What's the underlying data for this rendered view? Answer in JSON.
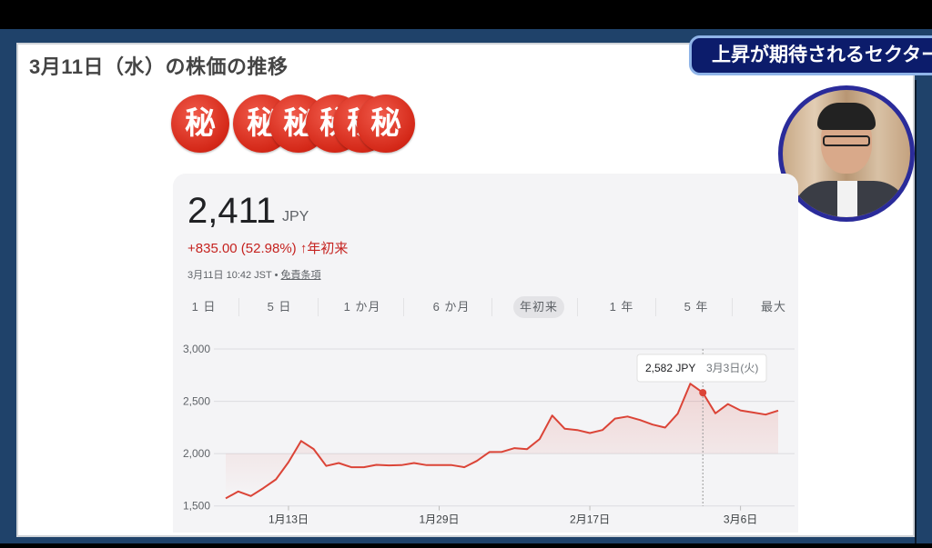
{
  "slide": {
    "title": "3月11日（水）の株価の推移",
    "seal_char": "秘",
    "seal_count": 6,
    "badge": "上昇が期待されるセクター"
  },
  "quote": {
    "price": "2,411",
    "currency": "JPY",
    "change": "+835.00 (52.98%)",
    "change_arrow": "↑",
    "change_period": "年初来",
    "timestamp": "3月11日 10:42 JST",
    "separator": "•",
    "disclaimer_link": "免責条項",
    "accent_color": "#d93025"
  },
  "tabs": [
    {
      "label": "1 日"
    },
    {
      "label": "5 日"
    },
    {
      "label": "1 か月"
    },
    {
      "label": "6 か月"
    },
    {
      "label": "年初来",
      "active": true
    },
    {
      "label": "1 年"
    },
    {
      "label": "5 年"
    },
    {
      "label": "最大"
    }
  ],
  "chart_data": {
    "type": "area",
    "ylim": [
      1500,
      3000
    ],
    "yticks": [
      "3,000",
      "2,500",
      "2,000",
      "1,500"
    ],
    "ytick_values": [
      3000,
      2500,
      2000,
      1500
    ],
    "xticks": [
      {
        "label": "1月13日",
        "date": "1/13"
      },
      {
        "label": "1月29日",
        "date": "1/29"
      },
      {
        "label": "2月17日",
        "date": "2/17"
      },
      {
        "label": "3月6日",
        "date": "3/6"
      }
    ],
    "grid": true,
    "line_color": "#db4437",
    "x": [
      "1/5",
      "1/6",
      "1/7",
      "1/8",
      "1/9",
      "1/13",
      "1/14",
      "1/15",
      "1/16",
      "1/19",
      "1/20",
      "1/21",
      "1/22",
      "1/23",
      "1/26",
      "1/27",
      "1/28",
      "1/29",
      "1/30",
      "2/2",
      "2/3",
      "2/4",
      "2/5",
      "2/6",
      "2/9",
      "2/10",
      "2/12",
      "2/13",
      "2/16",
      "2/17",
      "2/18",
      "2/19",
      "2/20",
      "2/24",
      "2/25",
      "2/26",
      "2/27",
      "3/2",
      "3/3",
      "3/4",
      "3/5",
      "3/6",
      "3/9",
      "3/10",
      "3/11"
    ],
    "values": [
      1572,
      1638,
      1595,
      1670,
      1754,
      1919,
      2121,
      2044,
      1882,
      1910,
      1870,
      1870,
      1893,
      1887,
      1890,
      1910,
      1890,
      1890,
      1890,
      1870,
      1930,
      2015,
      2017,
      2052,
      2043,
      2139,
      2364,
      2237,
      2225,
      2197,
      2225,
      2335,
      2355,
      2321,
      2277,
      2249,
      2382,
      2668,
      2582,
      2385,
      2474,
      2413,
      2393,
      2373,
      2411
    ],
    "tooltip": {
      "date": "3/3",
      "value_label": "2,582 JPY",
      "date_label": "3月3日(火)"
    }
  }
}
